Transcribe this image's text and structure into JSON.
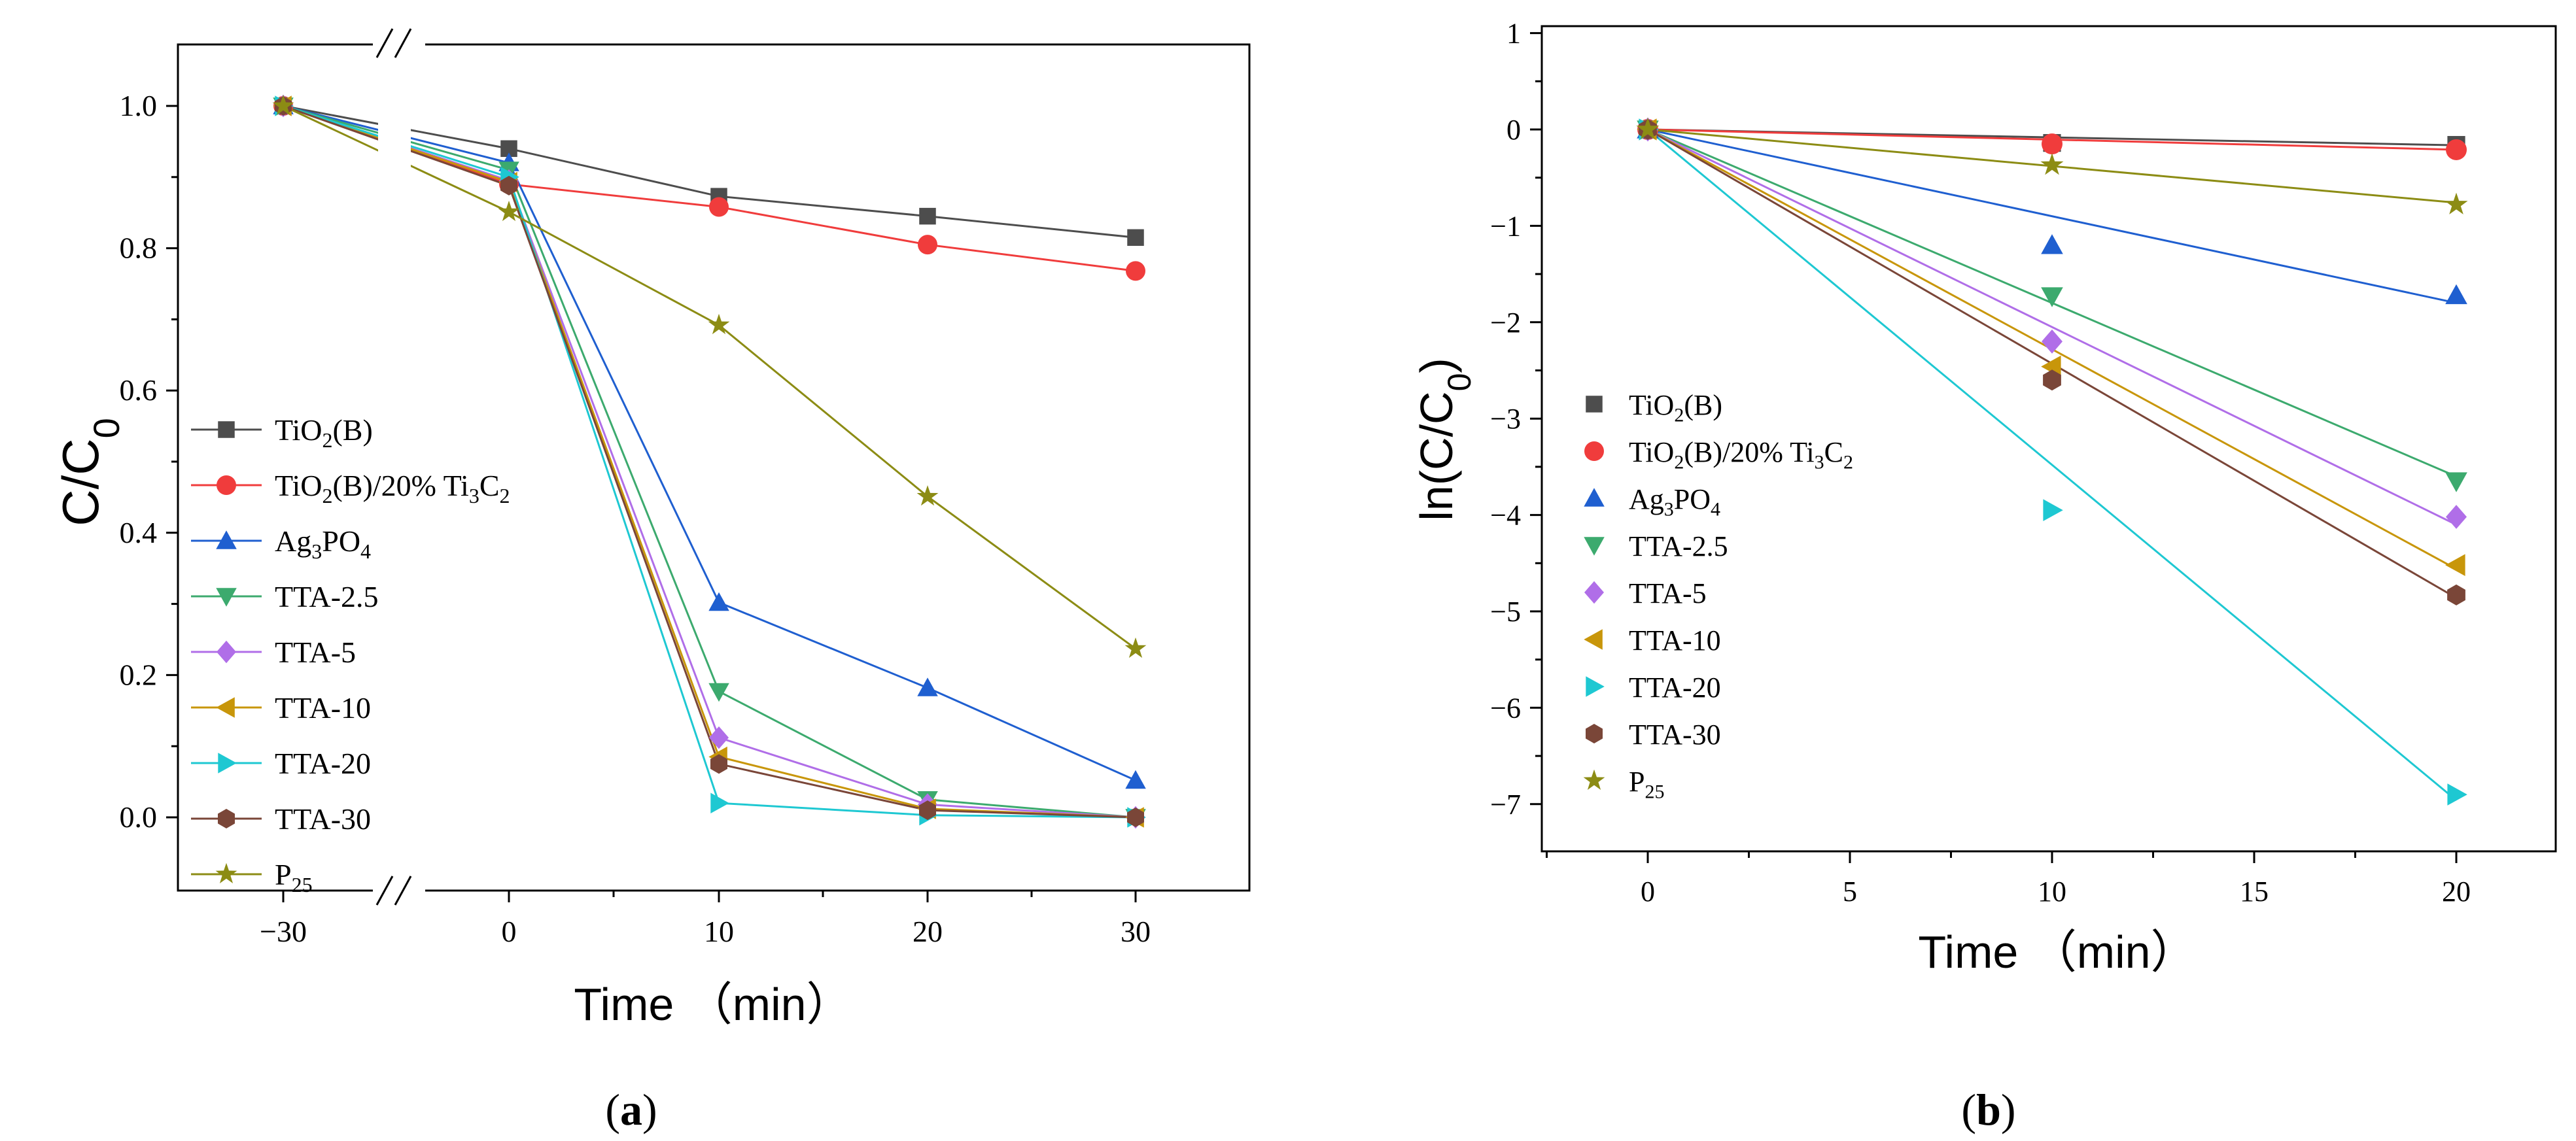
{
  "figure": {
    "panel_a_caption": "(a)",
    "panel_b_caption": "(b)"
  },
  "chart_data": [
    {
      "panel": "a",
      "type": "line",
      "title": "",
      "xlabel": "Time （min）",
      "ylabel": "C/C0",
      "x": [
        -30,
        0,
        10,
        20,
        30
      ],
      "x_ticks": [
        "-30",
        "0",
        "10",
        "20",
        "30"
      ],
      "y_ticks": [
        "0.0",
        "0.2",
        "0.4",
        "0.6",
        "0.8",
        "1.0"
      ],
      "ylim": [
        -0.1,
        1.1
      ],
      "axis_break": "between -30 and 0",
      "legend_position": "bottom-left",
      "series": [
        {
          "name": "TiO2(B)",
          "marker": "square",
          "color": "#4d4d4d",
          "values": [
            1.0,
            0.94,
            0.873,
            0.845,
            0.815
          ]
        },
        {
          "name": "TiO2(B)/20% Ti3C2",
          "marker": "circle",
          "color": "#f03c3c",
          "values": [
            1.0,
            0.89,
            0.858,
            0.805,
            0.768
          ]
        },
        {
          "name": "Ag3PO4",
          "marker": "triangle-up",
          "color": "#1f5fd0",
          "values": [
            1.0,
            0.92,
            0.302,
            0.182,
            0.052
          ]
        },
        {
          "name": "TTA-2.5",
          "marker": "triangle-down",
          "color": "#3caa6e",
          "values": [
            1.0,
            0.91,
            0.177,
            0.025,
            0.0
          ]
        },
        {
          "name": "TTA-5",
          "marker": "diamond",
          "color": "#b06ee8",
          "values": [
            1.0,
            0.895,
            0.112,
            0.018,
            0.0
          ]
        },
        {
          "name": "TTA-10",
          "marker": "triangle-left",
          "color": "#c8960a",
          "values": [
            1.0,
            0.893,
            0.085,
            0.012,
            0.0
          ]
        },
        {
          "name": "TTA-20",
          "marker": "triangle-right",
          "color": "#1ec8d2",
          "values": [
            1.0,
            0.9,
            0.02,
            0.003,
            0.0
          ]
        },
        {
          "name": "TTA-30",
          "marker": "hexagon",
          "color": "#7a4638",
          "values": [
            1.0,
            0.888,
            0.075,
            0.01,
            0.0
          ]
        },
        {
          "name": "P25",
          "marker": "star",
          "color": "#8c8c14",
          "values": [
            1.0,
            0.851,
            0.692,
            0.451,
            0.237
          ]
        }
      ]
    },
    {
      "panel": "b",
      "type": "scatter",
      "title": "",
      "xlabel": "Time （min）",
      "ylabel": "ln(C/C0)",
      "x": [
        0,
        10,
        20
      ],
      "x_ticks": [
        "0",
        "5",
        "10",
        "15",
        "20"
      ],
      "y_ticks": [
        "1",
        "0",
        "-1",
        "-2",
        "-3",
        "-4",
        "-5",
        "-6",
        "-7"
      ],
      "xlim": [
        -2.8,
        22.3
      ],
      "ylim": [
        -7.75,
        1.0
      ],
      "fit": "linear fit line through origin for each series",
      "legend_position": "center-left",
      "series": [
        {
          "name": "TiO2(B)",
          "marker": "square",
          "color": "#4d4d4d",
          "values": [
            0,
            -0.14,
            -0.16
          ],
          "slope": -0.0082
        },
        {
          "name": "TiO2(B)/20% Ti3C2",
          "marker": "circle",
          "color": "#f03c3c",
          "values": [
            0,
            -0.15,
            -0.21
          ],
          "slope": -0.0105
        },
        {
          "name": "Ag3PO4",
          "marker": "triangle-up",
          "color": "#1f5fd0",
          "values": [
            0,
            -1.2,
            -1.72
          ],
          "slope": -0.09
        },
        {
          "name": "TTA-2.5",
          "marker": "triangle-down",
          "color": "#3caa6e",
          "values": [
            0,
            -1.73,
            -3.65
          ],
          "slope": -0.18
        },
        {
          "name": "TTA-5",
          "marker": "diamond",
          "color": "#b06ee8",
          "values": [
            0,
            -2.2,
            -4.02
          ],
          "slope": -0.205
        },
        {
          "name": "TTA-10",
          "marker": "triangle-left",
          "color": "#c8960a",
          "values": [
            0,
            -2.46,
            -4.52
          ],
          "slope": -0.228
        },
        {
          "name": "TTA-20",
          "marker": "triangle-right",
          "color": "#1ec8d2",
          "values": [
            0,
            -3.95,
            -6.9
          ],
          "slope": -0.348
        },
        {
          "name": "TTA-30",
          "marker": "hexagon",
          "color": "#7a4638",
          "values": [
            0,
            -2.6,
            -4.83
          ],
          "slope": -0.243
        },
        {
          "name": "P25",
          "marker": "star",
          "color": "#8c8c14",
          "values": [
            0,
            -0.37,
            -0.78
          ],
          "slope": -0.038
        }
      ]
    }
  ]
}
